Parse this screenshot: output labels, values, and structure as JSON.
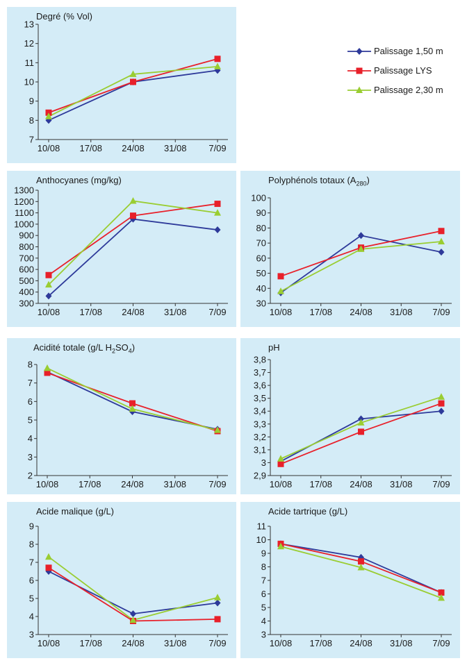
{
  "series_styles": [
    {
      "name": "Palissage 1,50 m",
      "color": "#2e3a9a",
      "marker": "diamond"
    },
    {
      "name": "Palissage LYS",
      "color": "#e8202a",
      "marker": "square"
    },
    {
      "name": "Palissage 2,30 m",
      "color": "#9acd32",
      "marker": "triangle"
    }
  ],
  "chart_data": [
    {
      "type": "line",
      "title": "Degré (% Vol)",
      "x_ticks": [
        "10/08",
        "17/08",
        "24/08",
        "31/08",
        "7/09"
      ],
      "x": [
        "10/08",
        "24/08",
        "7/09"
      ],
      "y_ticks": [
        "7",
        "8",
        "9",
        "10",
        "11",
        "12",
        "13"
      ],
      "ylim": [
        7,
        13
      ],
      "series": [
        {
          "name": "Palissage 1,50 m",
          "values": [
            8.0,
            10.0,
            10.6
          ]
        },
        {
          "name": "Palissage LYS",
          "values": [
            8.4,
            10.0,
            11.2
          ]
        },
        {
          "name": "Palissage 2,30 m",
          "values": [
            8.2,
            10.4,
            10.8
          ]
        }
      ]
    },
    {
      "type": "line",
      "title": "Anthocyanes (mg/kg)",
      "x_ticks": [
        "10/08",
        "17/08",
        "24/08",
        "31/08",
        "7/09"
      ],
      "x": [
        "10/08",
        "24/08",
        "7/09"
      ],
      "y_ticks": [
        "300",
        "400",
        "500",
        "600",
        "700",
        "800",
        "900",
        "1000",
        "1100",
        "1200",
        "1300"
      ],
      "ylim": [
        300,
        1300
      ],
      "series": [
        {
          "name": "Palissage 1,50 m",
          "values": [
            365,
            1045,
            950
          ]
        },
        {
          "name": "Palissage LYS",
          "values": [
            550,
            1075,
            1180
          ]
        },
        {
          "name": "Palissage 2,30 m",
          "values": [
            465,
            1205,
            1100
          ]
        }
      ]
    },
    {
      "type": "line",
      "title": "Polyphénols totaux (A",
      "title_sub": "280",
      "title_after": ")",
      "x_ticks": [
        "10/08",
        "17/08",
        "24/08",
        "31/08",
        "7/09"
      ],
      "x": [
        "10/08",
        "24/08",
        "7/09"
      ],
      "y_ticks": [
        "30",
        "40",
        "50",
        "60",
        "70",
        "80",
        "90",
        "100"
      ],
      "ylim": [
        30,
        100
      ],
      "series": [
        {
          "name": "Palissage 1,50 m",
          "values": [
            37,
            75,
            64
          ]
        },
        {
          "name": "Palissage LYS",
          "values": [
            48,
            67,
            78
          ]
        },
        {
          "name": "Palissage 2,30 m",
          "values": [
            38,
            66,
            71
          ]
        }
      ]
    },
    {
      "type": "line",
      "title": "Acidité totale (g/L H",
      "title_sub": "2",
      "title_after": "SO",
      "title_sub2": "4",
      "title_after2": ")",
      "x_ticks": [
        "10/08",
        "17/08",
        "24/08",
        "31/08",
        "7/09"
      ],
      "x": [
        "10/08",
        "24/08",
        "7/09"
      ],
      "y_ticks": [
        "2",
        "3",
        "4",
        "5",
        "6",
        "7",
        "8"
      ],
      "ylim": [
        2,
        8
      ],
      "series": [
        {
          "name": "Palissage 1,50 m",
          "values": [
            7.6,
            5.45,
            4.5
          ]
        },
        {
          "name": "Palissage LYS",
          "values": [
            7.55,
            5.9,
            4.4
          ]
        },
        {
          "name": "Palissage 2,30 m",
          "values": [
            7.8,
            5.6,
            4.45
          ]
        }
      ]
    },
    {
      "type": "line",
      "title": "pH",
      "x_ticks": [
        "10/08",
        "17/08",
        "24/08",
        "31/08",
        "7/09"
      ],
      "x": [
        "10/08",
        "24/08",
        "7/09"
      ],
      "y_ticks": [
        "2,9",
        "3",
        "3,1",
        "3,2",
        "3,3",
        "3,4",
        "3,5",
        "3,6",
        "3,7",
        "3,8"
      ],
      "ylim": [
        2.9,
        3.8
      ],
      "series": [
        {
          "name": "Palissage 1,50 m",
          "values": [
            3.01,
            3.34,
            3.4
          ]
        },
        {
          "name": "Palissage LYS",
          "values": [
            2.99,
            3.24,
            3.46
          ]
        },
        {
          "name": "Palissage 2,30 m",
          "values": [
            3.03,
            3.31,
            3.51
          ]
        }
      ]
    },
    {
      "type": "line",
      "title": "Acide malique (g/L)",
      "x_ticks": [
        "10/08",
        "17/08",
        "24/08",
        "31/08",
        "7/09"
      ],
      "x": [
        "10/08",
        "24/08",
        "7/09"
      ],
      "y_ticks": [
        "3",
        "4",
        "5",
        "6",
        "7",
        "8",
        "9"
      ],
      "ylim": [
        3,
        9
      ],
      "series": [
        {
          "name": "Palissage 1,50 m",
          "values": [
            6.5,
            4.15,
            4.75
          ]
        },
        {
          "name": "Palissage LYS",
          "values": [
            6.7,
            3.75,
            3.85
          ]
        },
        {
          "name": "Palissage 2,30 m",
          "values": [
            7.3,
            3.8,
            5.05
          ]
        }
      ]
    },
    {
      "type": "line",
      "title": "Acide tartrique (g/L)",
      "x_ticks": [
        "10/08",
        "17/08",
        "24/08",
        "31/08",
        "7/09"
      ],
      "x": [
        "10/08",
        "24/08",
        "7/09"
      ],
      "y_ticks": [
        "3",
        "4",
        "5",
        "6",
        "7",
        "8",
        "9",
        "10",
        "11"
      ],
      "ylim": [
        3,
        11
      ],
      "series": [
        {
          "name": "Palissage 1,50 m",
          "values": [
            9.7,
            8.7,
            6.1
          ]
        },
        {
          "name": "Palissage LYS",
          "values": [
            9.7,
            8.4,
            6.1
          ]
        },
        {
          "name": "Palissage 2,30 m",
          "values": [
            9.5,
            7.95,
            5.7
          ]
        }
      ]
    }
  ]
}
